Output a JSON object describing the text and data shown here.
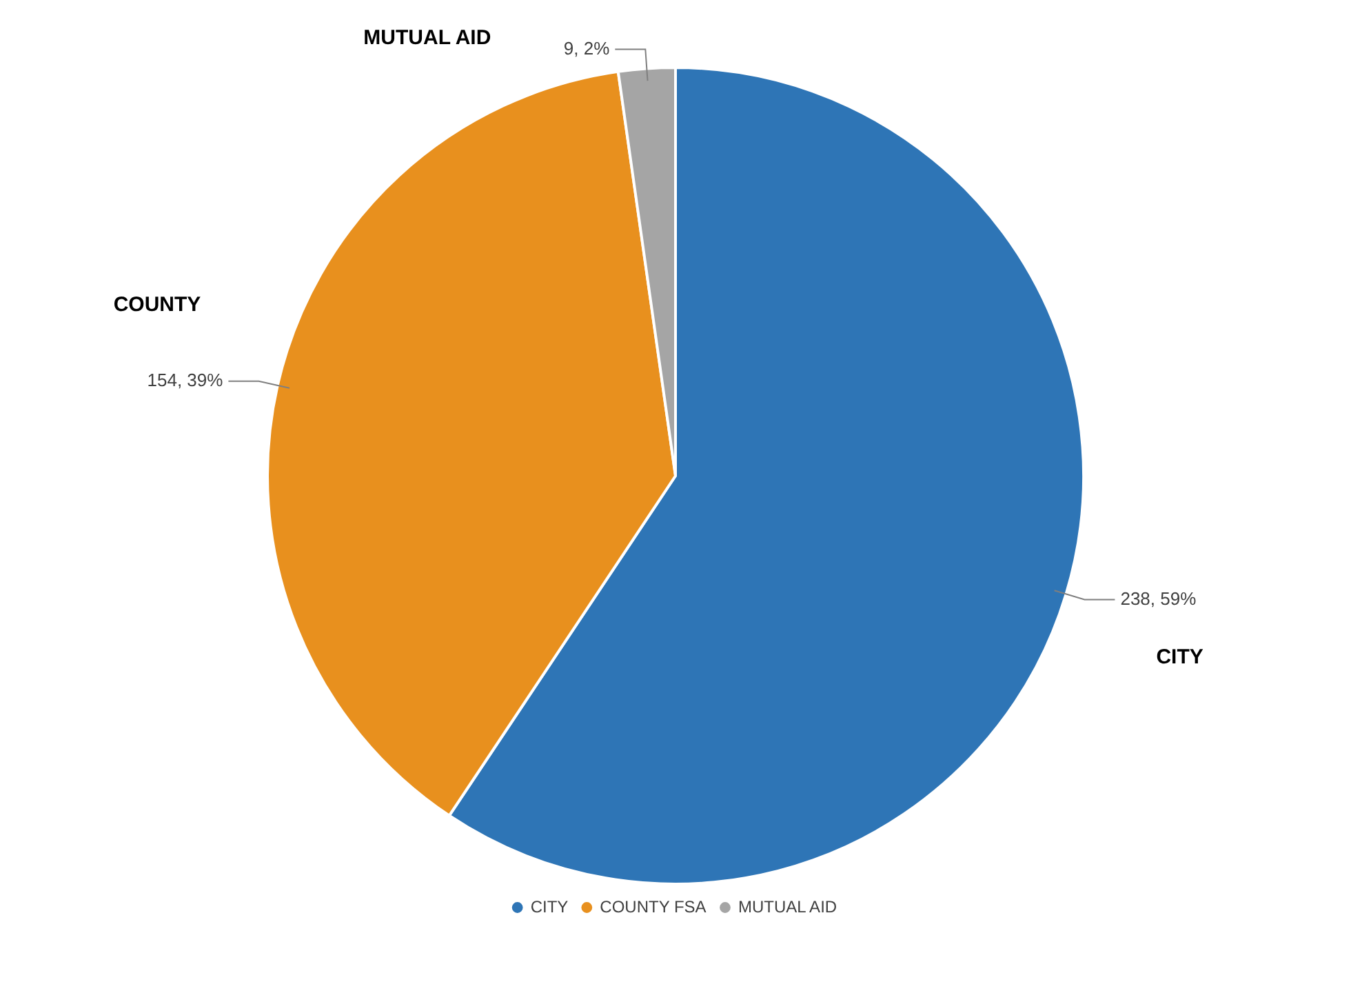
{
  "chart_data": {
    "type": "pie",
    "categories": [
      "CITY",
      "COUNTY FSA",
      "MUTUAL AID"
    ],
    "values": [
      238,
      154,
      9
    ],
    "colors": [
      "#2e75b6",
      "#e8901e",
      "#a5a5a5"
    ],
    "value_labels": [
      "238, 59%",
      "154, 39%",
      "9, 2%"
    ],
    "annotations": [
      "CITY",
      "COUNTY",
      "MUTUAL AID"
    ],
    "legend": "bottom"
  }
}
